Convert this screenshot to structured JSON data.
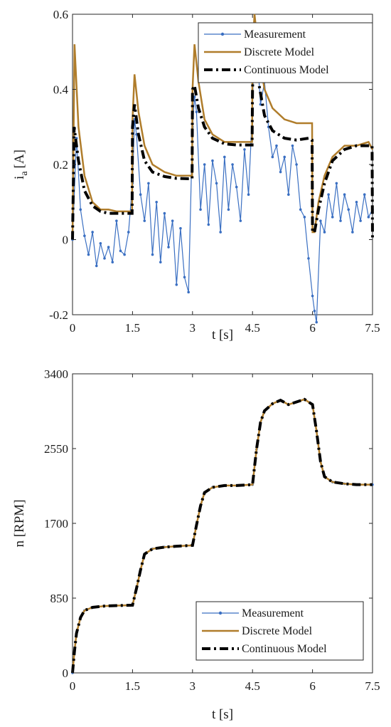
{
  "chart_data": [
    {
      "type": "line",
      "xlabel": "t [s]",
      "ylabel": "i",
      "ylabel_subscript": "a",
      "ylabel_unit": "[A]",
      "xlim": [
        0,
        7.5
      ],
      "ylim": [
        -0.2,
        0.6
      ],
      "xticks": [
        "0",
        "1.5",
        "3",
        "4.5",
        "6",
        "7.5"
      ],
      "yticks": [
        "-0.2",
        "0",
        "0.2",
        "0.4",
        "0.6"
      ],
      "grid": false,
      "legend_position": "top-right",
      "series": [
        {
          "name": "Measurement",
          "color": "#3a6fc2",
          "style": "solid-with-dots",
          "x": [
            0,
            0.1,
            0.2,
            0.3,
            0.4,
            0.5,
            0.6,
            0.7,
            0.8,
            0.9,
            1.0,
            1.1,
            1.2,
            1.3,
            1.4,
            1.5,
            1.55,
            1.6,
            1.7,
            1.8,
            1.9,
            2.0,
            2.1,
            2.2,
            2.3,
            2.4,
            2.5,
            2.6,
            2.7,
            2.8,
            2.9,
            3.0,
            3.05,
            3.1,
            3.2,
            3.3,
            3.4,
            3.5,
            3.6,
            3.7,
            3.8,
            3.9,
            4.0,
            4.1,
            4.2,
            4.3,
            4.4,
            4.5,
            4.55,
            4.6,
            4.7,
            4.8,
            4.9,
            5.0,
            5.1,
            5.2,
            5.3,
            5.4,
            5.5,
            5.6,
            5.7,
            5.8,
            5.9,
            6.0,
            6.05,
            6.1,
            6.2,
            6.3,
            6.4,
            6.5,
            6.6,
            6.7,
            6.8,
            6.9,
            7.0,
            7.1,
            7.2,
            7.3,
            7.4,
            7.5
          ],
          "values": [
            0,
            0.27,
            0.08,
            0.01,
            -0.04,
            0.02,
            -0.07,
            -0.01,
            -0.05,
            -0.02,
            -0.06,
            0.05,
            -0.03,
            -0.04,
            0.02,
            0.15,
            0.32,
            0.28,
            0.12,
            0.05,
            0.15,
            -0.04,
            0.1,
            -0.06,
            0.07,
            -0.02,
            0.05,
            -0.12,
            0.03,
            -0.1,
            -0.14,
            0.3,
            0.38,
            0.34,
            0.08,
            0.2,
            0.04,
            0.21,
            0.15,
            0.02,
            0.22,
            0.08,
            0.2,
            0.14,
            0.05,
            0.24,
            0.12,
            0.35,
            0.56,
            0.52,
            0.36,
            0.42,
            0.3,
            0.22,
            0.25,
            0.18,
            0.22,
            0.12,
            0.25,
            0.2,
            0.08,
            0.06,
            -0.05,
            -0.15,
            -0.19,
            -0.22,
            0.05,
            0.02,
            0.12,
            0.06,
            0.15,
            0.05,
            0.12,
            0.08,
            0.02,
            0.1,
            0.05,
            0.12,
            0.06,
            0.08
          ]
        },
        {
          "name": "Discrete Model",
          "color": "#b07d2b",
          "style": "solid",
          "x": [
            0,
            0.05,
            0.15,
            0.3,
            0.5,
            0.7,
            0.9,
            1.1,
            1.3,
            1.49,
            1.5,
            1.55,
            1.65,
            1.8,
            2.0,
            2.3,
            2.6,
            2.9,
            2.99,
            3.0,
            3.05,
            3.15,
            3.3,
            3.5,
            3.8,
            4.1,
            4.4,
            4.49,
            4.5,
            4.55,
            4.65,
            4.8,
            5.0,
            5.3,
            5.6,
            5.9,
            5.99,
            6.0,
            6.05,
            6.15,
            6.3,
            6.5,
            6.8,
            7.1,
            7.4,
            7.5
          ],
          "values": [
            0,
            0.52,
            0.3,
            0.17,
            0.1,
            0.08,
            0.08,
            0.075,
            0.075,
            0.075,
            0.32,
            0.44,
            0.34,
            0.25,
            0.2,
            0.18,
            0.17,
            0.17,
            0.17,
            0.4,
            0.52,
            0.42,
            0.32,
            0.28,
            0.26,
            0.26,
            0.26,
            0.26,
            0.5,
            0.6,
            0.5,
            0.4,
            0.35,
            0.32,
            0.31,
            0.31,
            0.31,
            0.02,
            0.02,
            0.1,
            0.17,
            0.22,
            0.25,
            0.25,
            0.26,
            0.24
          ]
        },
        {
          "name": "Continuous Model",
          "color": "#000000",
          "style": "dash-dot",
          "x": [
            0,
            0.04,
            0.15,
            0.3,
            0.5,
            0.7,
            0.9,
            1.1,
            1.3,
            1.49,
            1.5,
            1.55,
            1.65,
            1.8,
            2.0,
            2.3,
            2.6,
            2.9,
            2.99,
            3.0,
            3.05,
            3.15,
            3.3,
            3.5,
            3.8,
            4.1,
            4.4,
            4.49,
            4.5,
            4.55,
            4.65,
            4.8,
            5.0,
            5.3,
            5.6,
            5.9,
            5.99,
            6.0,
            6.05,
            6.15,
            6.3,
            6.5,
            6.8,
            7.1,
            7.4,
            7.49,
            7.5
          ],
          "values": [
            0,
            0.3,
            0.21,
            0.13,
            0.09,
            0.075,
            0.07,
            0.07,
            0.07,
            0.07,
            0.3,
            0.36,
            0.28,
            0.21,
            0.18,
            0.168,
            0.163,
            0.162,
            0.162,
            0.4,
            0.41,
            0.35,
            0.3,
            0.27,
            0.255,
            0.252,
            0.252,
            0.252,
            0.4,
            0.55,
            0.42,
            0.33,
            0.29,
            0.27,
            0.265,
            0.27,
            0.265,
            0.02,
            0.02,
            0.08,
            0.15,
            0.21,
            0.24,
            0.25,
            0.25,
            0.25,
            0
          ]
        }
      ]
    },
    {
      "type": "line",
      "xlabel": "t [s]",
      "ylabel": "n [RPM]",
      "xlim": [
        0,
        7.5
      ],
      "ylim": [
        0,
        3400
      ],
      "xticks": [
        "0",
        "1.5",
        "3",
        "4.5",
        "6",
        "7.5"
      ],
      "yticks": [
        "0",
        "850",
        "1700",
        "2550",
        "3400"
      ],
      "grid": false,
      "legend_position": "bottom-right",
      "series": [
        {
          "name": "Measurement",
          "color": "#3a6fc2",
          "style": "solid-with-dots",
          "x": [
            0,
            0.05,
            0.1,
            0.2,
            0.3,
            0.5,
            0.8,
            1.1,
            1.5,
            1.6,
            1.7,
            1.8,
            2.0,
            2.3,
            2.6,
            3.0,
            3.1,
            3.2,
            3.3,
            3.5,
            3.8,
            4.1,
            4.5,
            4.6,
            4.7,
            4.8,
            5.0,
            5.2,
            5.4,
            5.6,
            5.8,
            6.0,
            6.1,
            6.2,
            6.3,
            6.5,
            6.8,
            7.1,
            7.5
          ],
          "values": [
            0,
            250,
            450,
            630,
            710,
            745,
            760,
            765,
            770,
            960,
            1170,
            1350,
            1410,
            1430,
            1440,
            1450,
            1680,
            1900,
            2050,
            2110,
            2130,
            2130,
            2140,
            2540,
            2850,
            2980,
            3060,
            3100,
            3050,
            3080,
            3110,
            3050,
            2750,
            2400,
            2230,
            2170,
            2150,
            2140,
            2140
          ]
        },
        {
          "name": "Discrete Model",
          "color": "#b07d2b",
          "style": "solid",
          "x": [
            0,
            0.05,
            0.1,
            0.2,
            0.3,
            0.5,
            0.8,
            1.1,
            1.5,
            1.6,
            1.7,
            1.8,
            2.0,
            2.3,
            2.6,
            3.0,
            3.1,
            3.2,
            3.3,
            3.5,
            3.8,
            4.1,
            4.5,
            4.6,
            4.7,
            4.8,
            5.0,
            5.2,
            5.4,
            5.6,
            5.8,
            6.0,
            6.1,
            6.2,
            6.3,
            6.5,
            6.8,
            7.1,
            7.5
          ],
          "values": [
            0,
            250,
            450,
            630,
            710,
            745,
            760,
            765,
            770,
            960,
            1170,
            1350,
            1410,
            1430,
            1440,
            1450,
            1680,
            1900,
            2050,
            2110,
            2130,
            2130,
            2140,
            2540,
            2850,
            2980,
            3060,
            3100,
            3050,
            3080,
            3110,
            3050,
            2750,
            2400,
            2230,
            2170,
            2150,
            2140,
            2140
          ]
        },
        {
          "name": "Continuous Model",
          "color": "#000000",
          "style": "dash-dot",
          "x": [
            0,
            0.05,
            0.1,
            0.2,
            0.3,
            0.5,
            0.8,
            1.1,
            1.5,
            1.6,
            1.7,
            1.8,
            2.0,
            2.3,
            2.6,
            3.0,
            3.1,
            3.2,
            3.3,
            3.5,
            3.8,
            4.1,
            4.5,
            4.6,
            4.7,
            4.8,
            5.0,
            5.2,
            5.4,
            5.6,
            5.8,
            6.0,
            6.1,
            6.2,
            6.3,
            6.5,
            6.8,
            7.1,
            7.5
          ],
          "values": [
            0,
            250,
            450,
            630,
            710,
            745,
            760,
            765,
            770,
            960,
            1170,
            1350,
            1410,
            1430,
            1440,
            1450,
            1680,
            1900,
            2050,
            2110,
            2130,
            2130,
            2140,
            2540,
            2850,
            2980,
            3060,
            3100,
            3050,
            3080,
            3110,
            3050,
            2750,
            2400,
            2230,
            2170,
            2150,
            2140,
            2140
          ]
        }
      ]
    }
  ]
}
